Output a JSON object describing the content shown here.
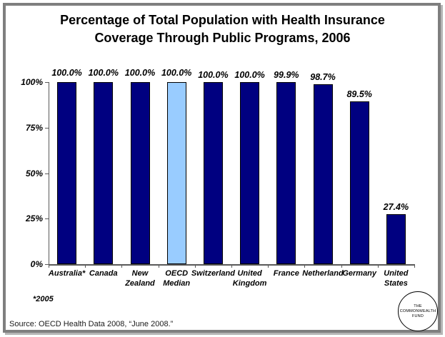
{
  "header": {
    "line1": "Percentage of Total Population with Health Insurance",
    "line2": "Coverage Through Public Programs, 2006"
  },
  "chart_data": {
    "type": "bar",
    "title": "Percentage of Total Population with Health Insurance Coverage Through Public Programs, 2006",
    "categories": [
      "Australia*",
      "Canada",
      "New Zealand",
      "OECD Median",
      "Switzerland",
      "United Kingdom",
      "France",
      "Netherland",
      "Germany",
      "United States"
    ],
    "category_label_lines": [
      [
        "Australia*"
      ],
      [
        "Canada"
      ],
      [
        "New",
        "Zealand"
      ],
      [
        "OECD",
        "Median"
      ],
      [
        "Switzerland"
      ],
      [
        "United",
        "Kingdom"
      ],
      [
        "France"
      ],
      [
        "Netherland"
      ],
      [
        "Germany"
      ],
      [
        "United",
        "States"
      ]
    ],
    "values": [
      100.0,
      100.0,
      100.0,
      100.0,
      100.0,
      100.0,
      99.9,
      98.7,
      89.5,
      27.4
    ],
    "value_labels": [
      "100.0%",
      "100.0%",
      "100.0%",
      "100.0%",
      "100.0%",
      "100.0%",
      "99.9%",
      "98.7%",
      "89.5%",
      "27.4%"
    ],
    "highlighted_index": 3,
    "bar_color": "#000080",
    "highlight_color": "#99CCFF",
    "bar_border_color": "#000000",
    "yticks": [
      "0%",
      "25%",
      "50%",
      "75%",
      "100%"
    ],
    "ylim": [
      0,
      100
    ],
    "xlabel": "",
    "ylabel": "",
    "grid": false,
    "legend": "none"
  },
  "footnote": "*2005",
  "source": "Source: OECD Health Data 2008, “June 2008.”",
  "logo": {
    "line1": "THE",
    "line2": "COMMONWEALTH",
    "line3": "FUND"
  }
}
